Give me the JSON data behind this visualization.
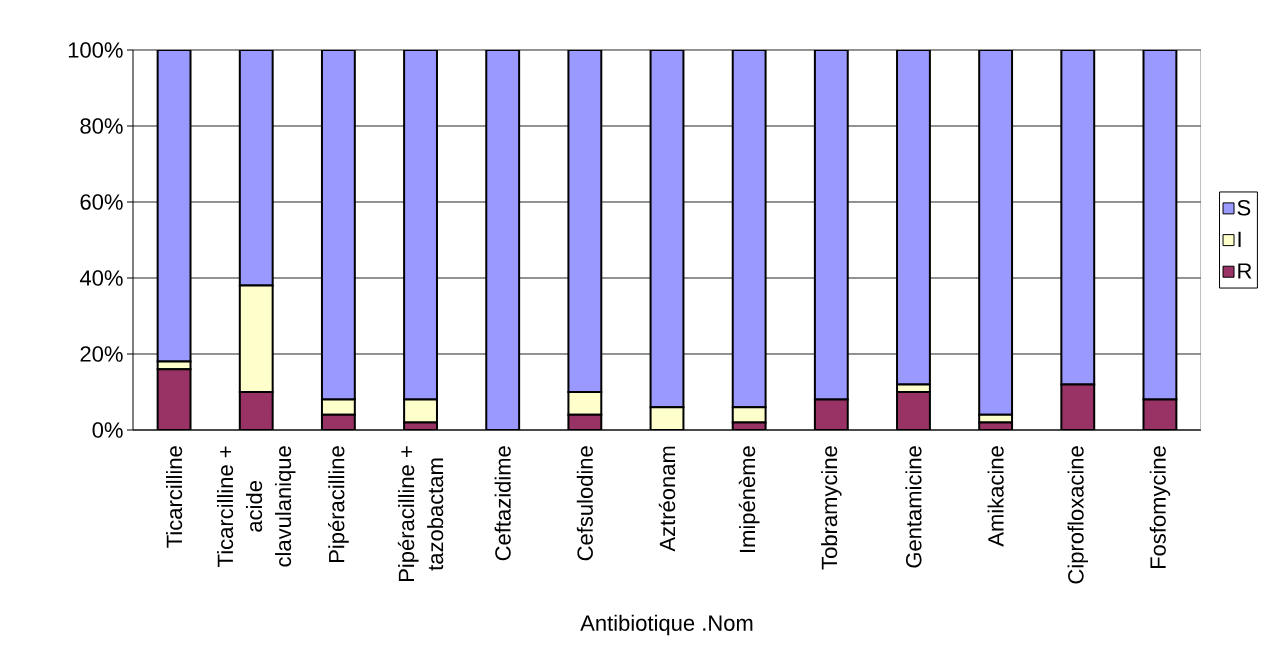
{
  "chart_data": {
    "type": "bar",
    "stacked": true,
    "xlabel": "Antibiotique .Nom",
    "categories": [
      "Ticarcilline",
      "Ticarcilline + acide clavulanique",
      "Pipéracilline",
      "Pipéracilline + tazobactam",
      "Ceftazidime",
      "Cefsulodine",
      "Aztréonam",
      "Imipénème",
      "Tobramycine",
      "Gentamicine",
      "Amikacine",
      "Ciprofloxacine",
      "Fosfomycine"
    ],
    "series": [
      {
        "name": "R",
        "color": "#993366",
        "values": [
          16,
          10,
          4,
          2,
          0,
          4,
          0,
          2,
          8,
          10,
          2,
          12,
          8
        ]
      },
      {
        "name": "I",
        "color": "#ffffcc",
        "values": [
          2,
          28,
          4,
          6,
          0,
          6,
          6,
          4,
          0,
          2,
          2,
          0,
          0
        ]
      },
      {
        "name": "S",
        "color": "#9999ff",
        "values": [
          82,
          62,
          92,
          92,
          100,
          90,
          94,
          94,
          92,
          88,
          96,
          88,
          92
        ]
      }
    ],
    "ylim": [
      0,
      100
    ],
    "yticks": [
      {
        "value": 0,
        "label": "0%"
      },
      {
        "value": 20,
        "label": "20%"
      },
      {
        "value": 40,
        "label": "40%"
      },
      {
        "value": 60,
        "label": "60%"
      },
      {
        "value": 80,
        "label": "80%"
      },
      {
        "value": 100,
        "label": "100%"
      }
    ],
    "grid": "y",
    "legend": "right"
  }
}
